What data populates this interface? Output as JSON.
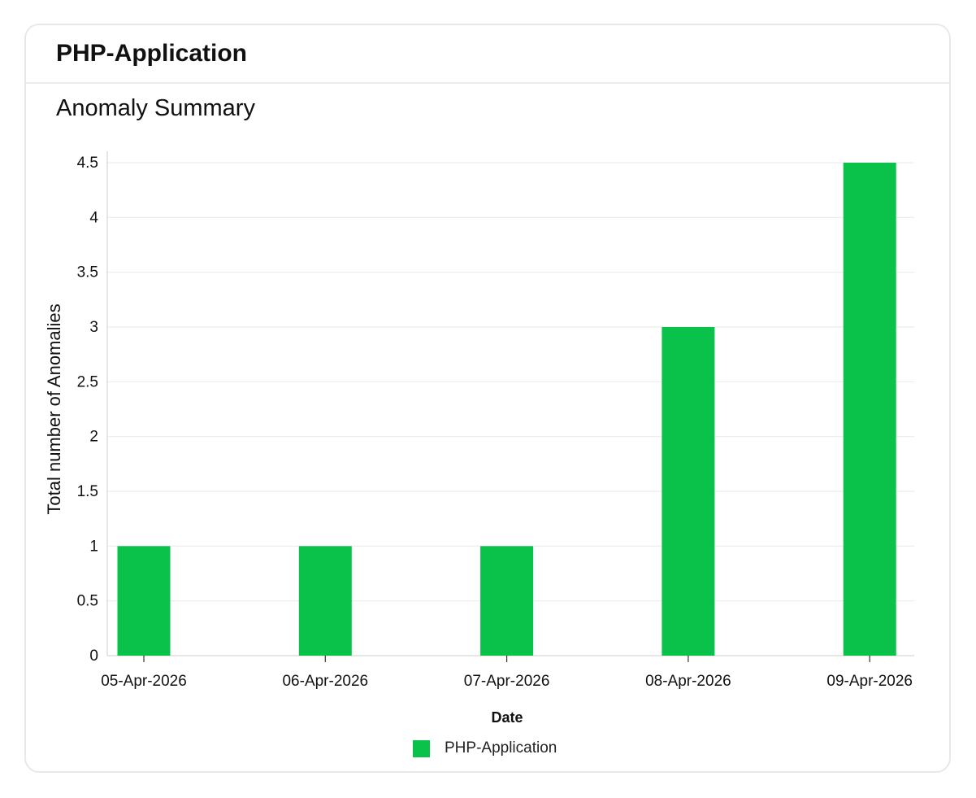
{
  "card": {
    "title": "PHP-Application"
  },
  "section": {
    "title": "Anomaly Summary"
  },
  "chart_data": {
    "type": "bar",
    "categories": [
      "05-Apr-2026",
      "06-Apr-2026",
      "07-Apr-2026",
      "08-Apr-2026",
      "09-Apr-2026"
    ],
    "series": [
      {
        "name": "PHP-Application",
        "values": [
          1,
          1,
          1,
          3,
          4.5
        ],
        "color": "#0ac24a"
      }
    ],
    "xlabel": "Date",
    "ylabel": "Total number of Anomalies",
    "ylim": [
      0,
      4.5
    ],
    "yticks": [
      0,
      0.5,
      1,
      1.5,
      2,
      2.5,
      3,
      3.5,
      4,
      4.5
    ],
    "ytick_labels": [
      "0",
      "0.5",
      "1",
      "1.5",
      "2",
      "2.5",
      "3",
      "3.5",
      "4",
      "4.5"
    ],
    "grid": true,
    "legend_position": "bottom-center"
  },
  "colors": {
    "bar": "#0ac24a",
    "grid": "#ececec",
    "axis": "#dddddd",
    "text": "#111111"
  }
}
